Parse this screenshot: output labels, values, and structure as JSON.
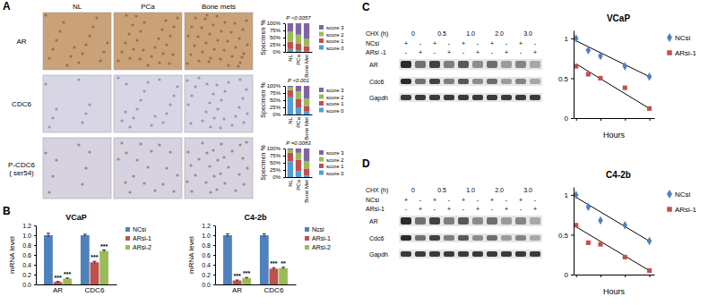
{
  "chart_data": [
    {
      "type": "bar",
      "stacked": true,
      "ylabel": "Specimen %",
      "annotations": [
        "P <0.0057"
      ],
      "categories": [
        "NL",
        "PCa",
        "Bone Met"
      ],
      "series": [
        {
          "name": "score 0",
          "color": "#4f9fd6",
          "values": [
            10,
            5,
            2
          ]
        },
        {
          "name": "score 1",
          "color": "#c0504d",
          "values": [
            25,
            25,
            18
          ]
        },
        {
          "name": "score 2",
          "color": "#9bbb59",
          "values": [
            35,
            30,
            25
          ]
        },
        {
          "name": "score 3",
          "color": "#8064a2",
          "values": [
            30,
            40,
            55
          ]
        }
      ],
      "ylim": [
        0,
        100
      ],
      "yticks": [
        {
          "value": 0,
          "label": "0%"
        },
        {
          "value": 25,
          "label": "25%"
        },
        {
          "value": 50,
          "label": "50%"
        },
        {
          "value": 75,
          "label": "75%"
        },
        {
          "value": 100,
          "label": "100%"
        }
      ],
      "legend": "right"
    },
    {
      "type": "bar",
      "stacked": true,
      "ylabel": "Specimen %",
      "annotations": [
        "P <0.001"
      ],
      "categories": [
        "NL",
        "PCa",
        "Bone Met"
      ],
      "series": [
        {
          "name": "score 0",
          "color": "#4f9fd6",
          "values": [
            60,
            25,
            10
          ]
        },
        {
          "name": "score 1",
          "color": "#c0504d",
          "values": [
            25,
            30,
            20
          ]
        },
        {
          "name": "score 2",
          "color": "#9bbb59",
          "values": [
            10,
            25,
            25
          ]
        },
        {
          "name": "score 3",
          "color": "#8064a2",
          "values": [
            5,
            20,
            45
          ]
        }
      ],
      "ylim": [
        0,
        100
      ],
      "yticks": [
        {
          "value": 0,
          "label": "0%"
        },
        {
          "value": 25,
          "label": "25%"
        },
        {
          "value": 50,
          "label": "50%"
        },
        {
          "value": 75,
          "label": "75%"
        },
        {
          "value": 100,
          "label": "100%"
        }
      ],
      "legend": "right"
    },
    {
      "type": "bar",
      "stacked": true,
      "ylabel": "Specimen %",
      "annotations": [
        "P =0.0083"
      ],
      "categories": [
        "NL",
        "PCa",
        "Bone Met"
      ],
      "series": [
        {
          "name": "score 0",
          "color": "#4f9fd6",
          "values": [
            55,
            20,
            5
          ]
        },
        {
          "name": "score 1",
          "color": "#c0504d",
          "values": [
            30,
            40,
            25
          ]
        },
        {
          "name": "score 2",
          "color": "#9bbb59",
          "values": [
            10,
            25,
            25
          ]
        },
        {
          "name": "score 3",
          "color": "#8064a2",
          "values": [
            5,
            15,
            45
          ]
        }
      ],
      "ylim": [
        0,
        100
      ],
      "yticks": [
        {
          "value": 0,
          "label": "0%"
        },
        {
          "value": 25,
          "label": "25%"
        },
        {
          "value": 50,
          "label": "50%"
        },
        {
          "value": 75,
          "label": "75%"
        },
        {
          "value": 100,
          "label": "100%"
        }
      ],
      "legend": "right"
    },
    {
      "type": "bar",
      "title": "VCaP",
      "ylabel": "mRNA level",
      "categories": [
        "AR",
        "CDC6"
      ],
      "series": [
        {
          "name": "NCsi",
          "color": "#4f81bd",
          "values": [
            1.0,
            1.0
          ],
          "errors": [
            0.04,
            0.02
          ]
        },
        {
          "name": "ARsi-1",
          "color": "#c0504d",
          "values": [
            0.05,
            0.45
          ],
          "errors": [
            0.01,
            0.02
          ],
          "annotations": [
            "***",
            "***"
          ]
        },
        {
          "name": "ARsi-2",
          "color": "#9bbb59",
          "values": [
            0.12,
            0.68
          ],
          "errors": [
            0.01,
            0.02
          ],
          "annotations": [
            "***",
            "***"
          ]
        }
      ],
      "ylim": [
        0,
        1.2
      ],
      "yticks": [
        {
          "value": 0,
          "label": "0.0"
        },
        {
          "value": 0.2,
          "label": "0.2"
        },
        {
          "value": 0.4,
          "label": "0.4"
        },
        {
          "value": 0.6,
          "label": "0.6"
        },
        {
          "value": 0.8,
          "label": "0.8"
        },
        {
          "value": 1,
          "label": "1.0"
        },
        {
          "value": 1.2,
          "label": "1.2"
        }
      ],
      "legend": "right"
    },
    {
      "type": "bar",
      "title": "C4-2b",
      "ylabel": "mRNA level",
      "categories": [
        "AR",
        "CDC6"
      ],
      "series": [
        {
          "name": "Ncsi",
          "color": "#4f81bd",
          "values": [
            1.0,
            1.0
          ],
          "errors": [
            0.03,
            0.03
          ]
        },
        {
          "name": "ARsi-1",
          "color": "#c0504d",
          "values": [
            0.08,
            0.32
          ],
          "errors": [
            0.01,
            0.02
          ],
          "annotations": [
            "***",
            "***"
          ]
        },
        {
          "name": "ARsi-2",
          "color": "#9bbb59",
          "values": [
            0.13,
            0.33
          ],
          "errors": [
            0.01,
            0.02
          ],
          "annotations": [
            "***",
            "**"
          ]
        }
      ],
      "ylim": [
        0,
        1.2
      ],
      "yticks": [
        {
          "value": 0,
          "label": "0.0"
        },
        {
          "value": 0.2,
          "label": "0.2"
        },
        {
          "value": 0.4,
          "label": "0.4"
        },
        {
          "value": 0.6,
          "label": "0.6"
        },
        {
          "value": 0.8,
          "label": "0.8"
        },
        {
          "value": 1,
          "label": "1.0"
        },
        {
          "value": 1.2,
          "label": "1.2"
        }
      ],
      "legend": "right"
    },
    {
      "type": "scatter",
      "title": "VCaP",
      "xlabel": "Hours",
      "x": [
        0,
        0.5,
        1,
        2,
        3
      ],
      "series": [
        {
          "name": "NCsi",
          "color": "#4f81bd",
          "marker": "diamond",
          "values": [
            1.0,
            0.85,
            0.78,
            0.65,
            0.52
          ],
          "fit": {
            "x": [
              0,
              3
            ],
            "values": [
              0.97,
              0.52
            ]
          }
        },
        {
          "name": "ARsi-1",
          "color": "#c0504d",
          "marker": "square",
          "values": [
            0.65,
            0.55,
            0.5,
            0.38,
            0.12
          ],
          "fit": {
            "x": [
              0,
              3
            ],
            "values": [
              0.68,
              0.12
            ]
          }
        }
      ],
      "xlim": [
        -0.1,
        3.2
      ],
      "xticks": [
        0,
        1,
        2,
        3
      ],
      "ylim": [
        0,
        1.1
      ],
      "yticks": [
        0,
        0.5,
        1
      ],
      "tick_labels": "y",
      "legend": "right"
    },
    {
      "type": "scatter",
      "title": "C4-2b",
      "xlabel": "Hours",
      "x": [
        0,
        0.5,
        1,
        2,
        3
      ],
      "series": [
        {
          "name": "NCsi",
          "color": "#4f81bd",
          "marker": "diamond",
          "values": [
            1.0,
            0.85,
            0.68,
            0.62,
            0.42
          ],
          "fit": {
            "x": [
              0,
              3
            ],
            "values": [
              0.97,
              0.42
            ]
          }
        },
        {
          "name": "ARsi-1",
          "color": "#c0504d",
          "marker": "square",
          "values": [
            0.62,
            0.4,
            0.38,
            0.22,
            0.05
          ],
          "fit": {
            "x": [
              0,
              3
            ],
            "values": [
              0.6,
              0.05
            ]
          }
        }
      ],
      "xlim": [
        -0.1,
        3.2
      ],
      "xticks": [
        0,
        1,
        2,
        3
      ],
      "ylim": [
        0,
        1.1
      ],
      "yticks": [
        0,
        0.5,
        1
      ],
      "tick_labels": "y",
      "legend": "right"
    }
  ],
  "panel_labels": [
    "A",
    "B",
    "C",
    "D"
  ],
  "ihc": {
    "columns": [
      "NL",
      "PCa",
      "Bone mets"
    ],
    "rows": [
      [
        "AR"
      ],
      [
        "CDC6"
      ],
      [
        "P-CDC6",
        "( ser54)"
      ]
    ]
  },
  "blots": [
    {
      "treatment": "CHX (h)",
      "times": [
        "0",
        "0.5",
        "1.0",
        "2.0",
        "3.0"
      ],
      "conditions": [
        {
          "label": "NCsi",
          "signs": [
            "+",
            "-",
            "+",
            "-",
            "+",
            "-",
            "+",
            "-",
            "+",
            "-"
          ]
        },
        {
          "label": "ARsi -1",
          "signs": [
            "-",
            "+",
            "-",
            "+",
            "-",
            "+",
            "-",
            "+",
            "-",
            "+"
          ]
        }
      ],
      "proteins": [
        "AR",
        "Cdc6",
        "Gapdh"
      ]
    },
    {
      "treatment": "CHX (h)",
      "times": [
        "0",
        "0.5",
        "1.0",
        "2.0",
        "3.0"
      ],
      "conditions": [
        {
          "label": "NCsi",
          "signs": [
            "+",
            "-",
            "+",
            "-",
            "+",
            "-",
            "+",
            "-",
            "+",
            "-"
          ]
        },
        {
          "label": "ARsi-1",
          "signs": [
            "-",
            "+",
            "-",
            "+",
            "-",
            "+",
            "-",
            "+",
            "-",
            "+"
          ]
        }
      ],
      "proteins": [
        "AR",
        "Cdc6",
        "Gapdh"
      ]
    }
  ]
}
